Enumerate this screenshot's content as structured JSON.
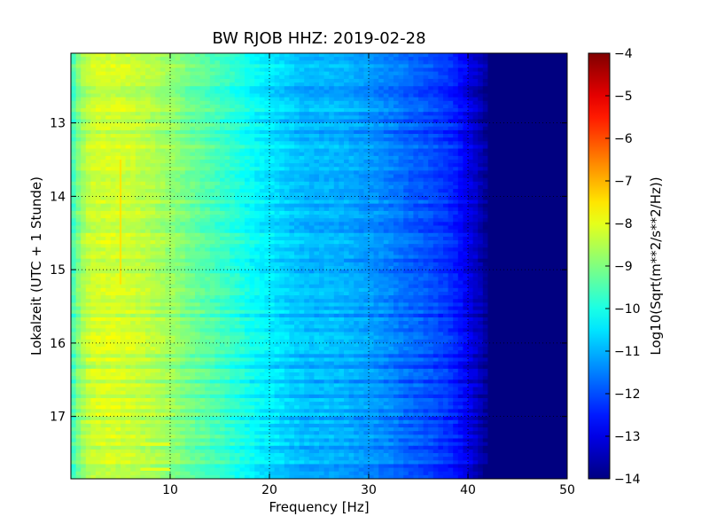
{
  "chart_data": {
    "type": "heatmap",
    "title": "BW RJOB HHZ: 2019-02-28",
    "xlabel": "Frequency [Hz]",
    "ylabel": "Lokalzeit (UTC + 1 Stunde)",
    "xlim": [
      0,
      50
    ],
    "ylim": [
      12.05,
      17.85
    ],
    "y_inverted": true,
    "x_ticks": [
      10,
      20,
      30,
      40,
      50
    ],
    "x_tick_labels": [
      "10",
      "20",
      "30",
      "40",
      "50"
    ],
    "y_ticks": [
      13,
      14,
      15,
      16,
      17
    ],
    "y_tick_labels": [
      "13",
      "14",
      "15",
      "16",
      "17"
    ],
    "grid": true,
    "colormap": "jet",
    "colorbar": {
      "label": "Log10(Sqrt(m**2/s**2/Hz))",
      "vmin": -14,
      "vmax": -4,
      "ticks": [
        -4,
        -5,
        -6,
        -7,
        -8,
        -9,
        -10,
        -11,
        -12,
        -13,
        -14
      ],
      "tick_labels": [
        "−4",
        "−5",
        "−6",
        "−7",
        "−8",
        "−9",
        "−10",
        "−11",
        "−12",
        "−13",
        "−14"
      ]
    },
    "spectrum_profile": {
      "frequency_hz": [
        0,
        1,
        2,
        4,
        6,
        8,
        10,
        12,
        14,
        16,
        18,
        20,
        22,
        24,
        26,
        28,
        30,
        32,
        34,
        36,
        38,
        39,
        40,
        41,
        42,
        43,
        45,
        50
      ],
      "log10_amplitude": [
        -9.8,
        -8.8,
        -8.3,
        -8.2,
        -8.3,
        -8.5,
        -8.8,
        -9.2,
        -9.5,
        -9.8,
        -10.2,
        -10.5,
        -10.8,
        -11.0,
        -11.0,
        -11.1,
        -11.3,
        -11.5,
        -11.8,
        -12.0,
        -12.3,
        -12.6,
        -13.0,
        -13.4,
        -13.9,
        -14.0,
        -14.0,
        -14.0
      ]
    },
    "features": [
      {
        "frequency_hz": 5.0,
        "time_start": 13.5,
        "time_end": 15.2,
        "log10_amplitude": -7.5
      },
      {
        "frequency_hz_range": [
          7,
          10
        ],
        "time": 17.38,
        "log10_amplitude": -8.0
      },
      {
        "frequency_hz_range": [
          7,
          10
        ],
        "time": 17.72,
        "log10_amplitude": -8.0
      }
    ]
  }
}
